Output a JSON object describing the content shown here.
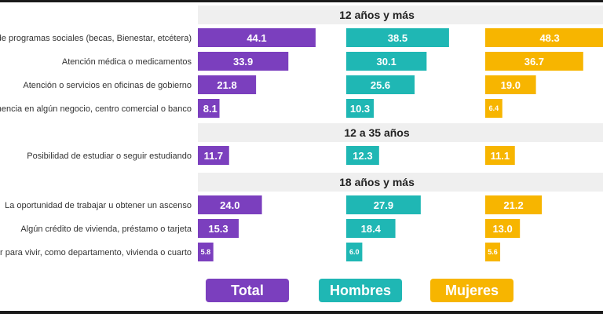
{
  "chart_data": {
    "type": "bar",
    "series": [
      {
        "name": "Total",
        "color": "#7b3fbe"
      },
      {
        "name": "Hombres",
        "color": "#1fb7b4"
      },
      {
        "name": "Mujeres",
        "color": "#f7b500"
      }
    ],
    "groups": [
      {
        "header": "12 años y más",
        "rows": [
          {
            "label": "Apoyos de programas sociales (becas, Bienestar, etcétera)",
            "values": [
              44.1,
              38.5,
              48.3
            ]
          },
          {
            "label": "Atención médica o medicamentos",
            "values": [
              33.9,
              30.1,
              36.7
            ]
          },
          {
            "label": "Atención o servicios en oficinas de gobierno",
            "values": [
              21.8,
              25.6,
              19.0
            ]
          },
          {
            "label": "La permanencia en algún negocio, centro comercial o banco",
            "values": [
              8.1,
              10.3,
              6.4
            ]
          }
        ]
      },
      {
        "header": "12 a 35 años",
        "rows": [
          {
            "label": "Posibilidad de estudiar o seguir estudiando",
            "values": [
              11.7,
              12.3,
              11.1
            ]
          }
        ]
      },
      {
        "header": "18 años y más",
        "rows": [
          {
            "label": "La oportunidad de trabajar u obtener un ascenso",
            "values": [
              24.0,
              27.9,
              21.2
            ]
          },
          {
            "label": "Algún crédito de vivienda, préstamo o tarjeta",
            "values": [
              15.3,
              18.4,
              13.0
            ]
          },
          {
            "label": "Un lugar para vivir, como departamento, vivienda o cuarto",
            "values": [
              5.8,
              6.0,
              5.6
            ]
          }
        ]
      }
    ],
    "legend_position": "bottom",
    "xlim": [
      0,
      50
    ]
  }
}
